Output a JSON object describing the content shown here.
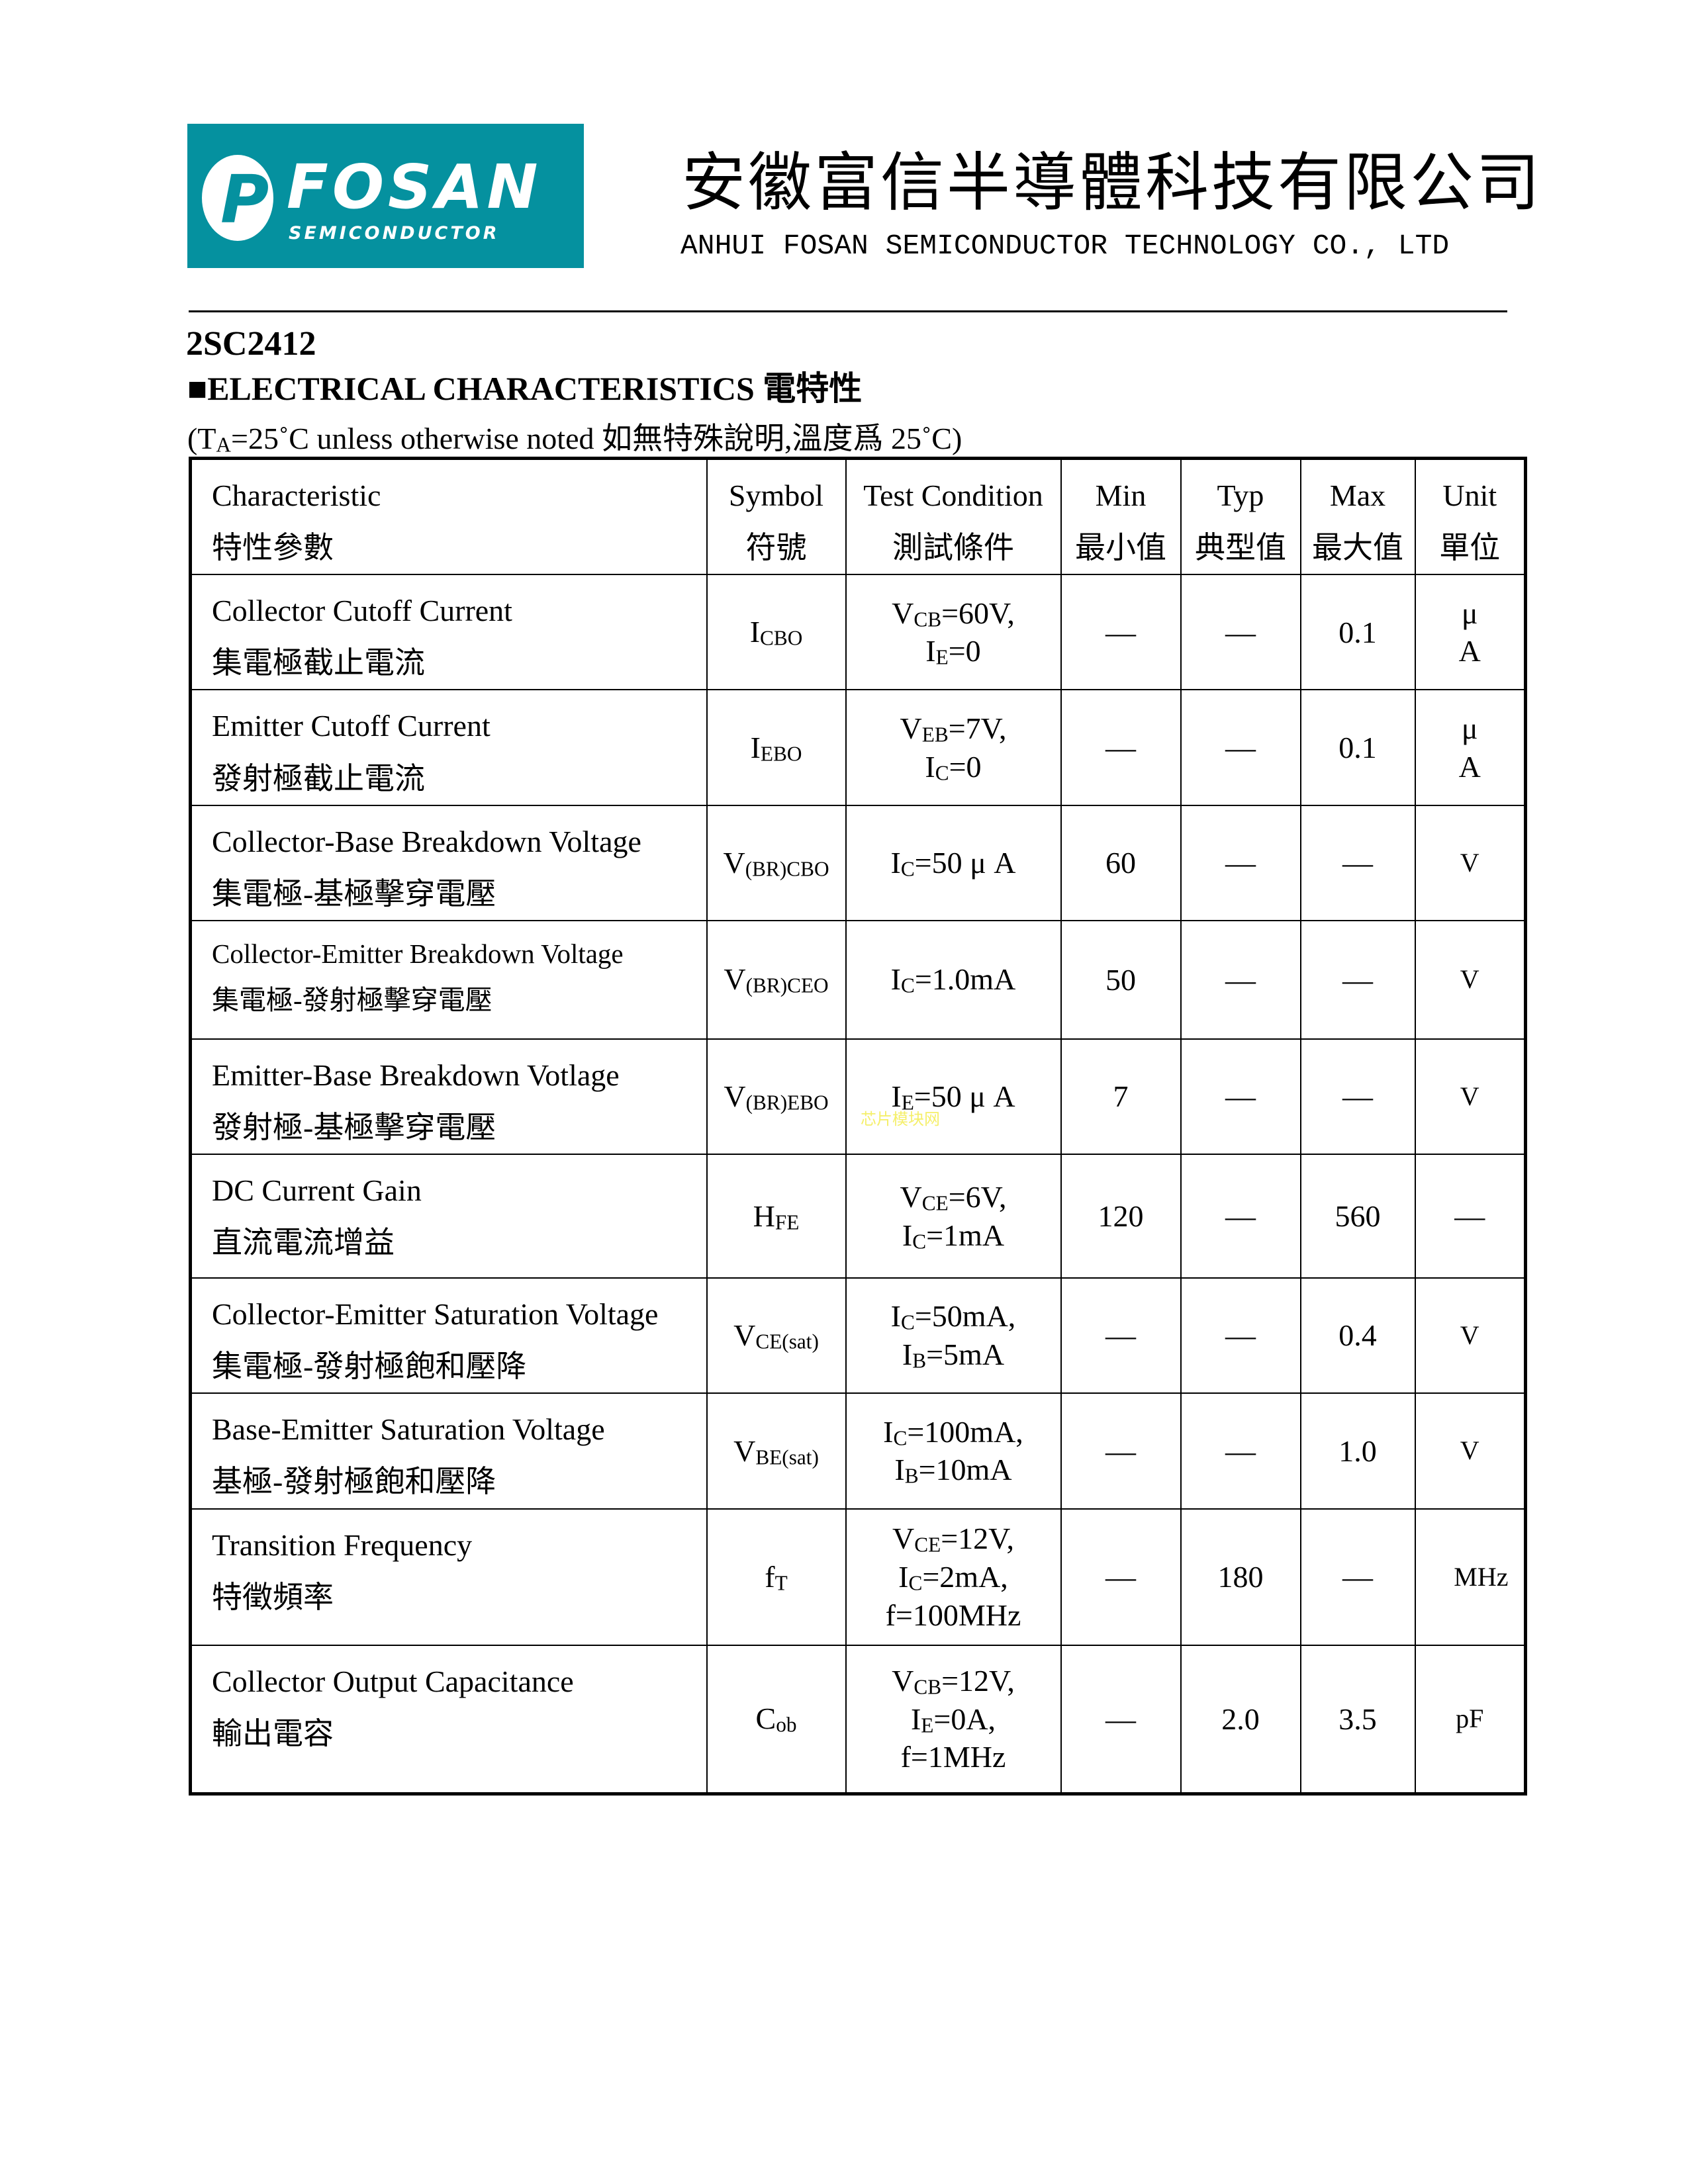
{
  "header": {
    "logo_text": "FOSAN",
    "logo_subtext": "SEMICONDUCTOR",
    "company_cn": "安徽富信半導體科技有限公司",
    "company_en": "ANHUI FOSAN SEMICONDUCTOR TECHNOLOGY CO., LTD",
    "brand_color": "#05919f"
  },
  "part_number": "2SC2412",
  "section_title": "■ELECTRICAL CHARACTERISTICS 電特性",
  "conditions": {
    "pre": "(T",
    "sub": "A",
    "post": "=25˚C  unless otherwise noted 如無特殊說明,溫度爲  25˚C)"
  },
  "watermark": "芯片模块网",
  "table": {
    "headers": [
      {
        "en": "Characteristic",
        "cn": "特性參數"
      },
      {
        "en": "Symbol",
        "cn": "符號"
      },
      {
        "en": "Test Condition",
        "cn": "測試條件"
      },
      {
        "en": "Min",
        "cn": "最小值"
      },
      {
        "en": "Typ",
        "cn": "典型值"
      },
      {
        "en": "Max",
        "cn": "最大值"
      },
      {
        "en": "Unit",
        "cn": "單位"
      }
    ],
    "rows": [
      {
        "en": "Collector Cutoff Current",
        "cn": "集電極截止電流",
        "sym": {
          "main": "I",
          "sub": "CBO"
        },
        "cond": [
          {
            "pre": "V",
            "sub": "CB",
            "post": "=60V,"
          },
          {
            "pre": "I",
            "sub": "E",
            "post": "=0"
          }
        ],
        "min": "—",
        "typ": "—",
        "max": "0.1",
        "unit": "μ A"
      },
      {
        "en": "Emitter Cutoff Current",
        "cn": "發射極截止電流",
        "sym": {
          "main": "I",
          "sub": "EBO"
        },
        "cond": [
          {
            "pre": "V",
            "sub": "EB",
            "post": "=7V,"
          },
          {
            "pre": "I",
            "sub": "C",
            "post": "=0"
          }
        ],
        "min": "—",
        "typ": "—",
        "max": "0.1",
        "unit": "μ A"
      },
      {
        "en": "Collector-Base Breakdown Voltage",
        "cn": "集電極-基極擊穿電壓",
        "sym": {
          "main": "V",
          "sub": "(BR)CBO"
        },
        "cond": [
          {
            "pre": "I",
            "sub": "C",
            "post": "=50 μ A"
          }
        ],
        "min": "60",
        "typ": "—",
        "max": "—",
        "unit": "V"
      },
      {
        "en": "Collector-Emitter Breakdown Voltage",
        "cn": "集電極-發射極擊穿電壓",
        "sym": {
          "main": "V",
          "sub": "(BR)CEO"
        },
        "cond": [
          {
            "pre": "I",
            "sub": "C",
            "post": "=1.0mA"
          }
        ],
        "min": "50",
        "typ": "—",
        "max": "—",
        "unit": "V"
      },
      {
        "en": "Emitter-Base Breakdown Votlage",
        "cn": "發射極-基極擊穿電壓",
        "sym": {
          "main": "V",
          "sub": "(BR)EBO"
        },
        "cond": [
          {
            "pre": "I",
            "sub": "E",
            "post": "=50 μ A"
          }
        ],
        "min": "7",
        "typ": "—",
        "max": "—",
        "unit": "V"
      },
      {
        "en": "DC Current Gain",
        "cn": "直流電流增益",
        "sym": {
          "main": "H",
          "sub": "FE"
        },
        "cond": [
          {
            "pre": "V",
            "sub": "CE",
            "post": "=6V,"
          },
          {
            "pre": "I",
            "sub": "C",
            "post": "=1mA"
          }
        ],
        "min": "120",
        "typ": "—",
        "max": "560",
        "unit": "—"
      },
      {
        "en": "Collector-Emitter Saturation Voltage",
        "cn": "集電極-發射極飽和壓降",
        "sym": {
          "main": "V",
          "sub": "CE(sat)"
        },
        "cond": [
          {
            "pre": "I",
            "sub": "C",
            "post": "=50mA,"
          },
          {
            "pre": "I",
            "sub": "B",
            "post": "=5mA"
          }
        ],
        "min": "—",
        "typ": "—",
        "max": "0.4",
        "unit": "V"
      },
      {
        "en": "Base-Emitter Saturation Voltage",
        "cn": "基極-發射極飽和壓降",
        "sym": {
          "main": "V",
          "sub": "BE(sat)"
        },
        "cond": [
          {
            "pre": "I",
            "sub": "C",
            "post": "=100mA,"
          },
          {
            "pre": "I",
            "sub": "B",
            "post": "=10mA"
          }
        ],
        "min": "—",
        "typ": "—",
        "max": "1.0",
        "unit": "V"
      },
      {
        "en": "Transition Frequency",
        "cn": "特徵頻率",
        "sym": {
          "main": "f",
          "sub": "T"
        },
        "cond": [
          {
            "pre": "V",
            "sub": "CE",
            "post": "=12V,"
          },
          {
            "pre": "I",
            "sub": "C",
            "post": "=2mA,"
          },
          {
            "pre": "f=100MHz"
          }
        ],
        "min": "—",
        "typ": "180",
        "max": "—",
        "unit": "MHz"
      },
      {
        "en": "Collector Output Capacitance",
        "cn": "輸出電容",
        "sym": {
          "main": "C",
          "sub": "ob"
        },
        "cond": [
          {
            "pre": "V",
            "sub": "CB",
            "post": "=12V,"
          },
          {
            "pre": "I",
            "sub": "E",
            "post": "=0A,"
          },
          {
            "pre": "f=1MHz"
          }
        ],
        "min": "—",
        "typ": "2.0",
        "max": "3.5",
        "unit": "pF"
      }
    ]
  }
}
